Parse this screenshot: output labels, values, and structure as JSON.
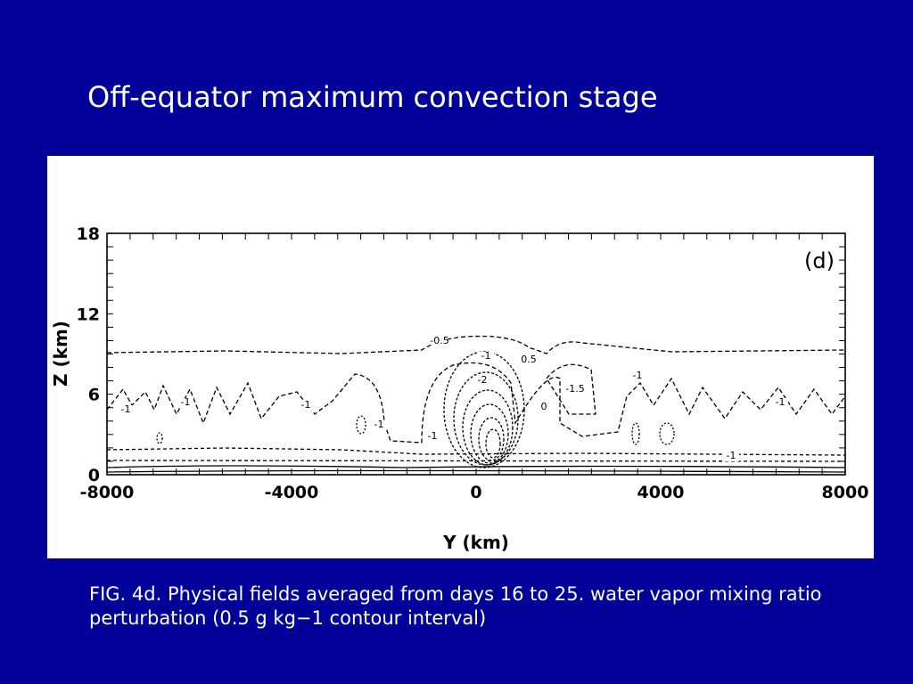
{
  "title": "Off-equator maximum convection stage",
  "figure": {
    "panel": "(d)",
    "y_axis_label": "Z (km)",
    "x_axis_label": "Y (km)",
    "y_ticks": [
      "0",
      "6",
      "12",
      "18"
    ],
    "x_ticks": [
      "-8000",
      "-4000",
      "0",
      "4000",
      "8000"
    ],
    "contour_labels": [
      "-0.5",
      "-1",
      "-2",
      "0.5",
      "0",
      "-1.5",
      "-1",
      "-1",
      "-1",
      "-1",
      "-1",
      "-1",
      "-1",
      "-1"
    ]
  },
  "caption": "FIG. 4d. Physical fields averaged from days 16 to 25. water vapor mixing ratio perturbation (0.5 g kg−1 contour interval)"
}
